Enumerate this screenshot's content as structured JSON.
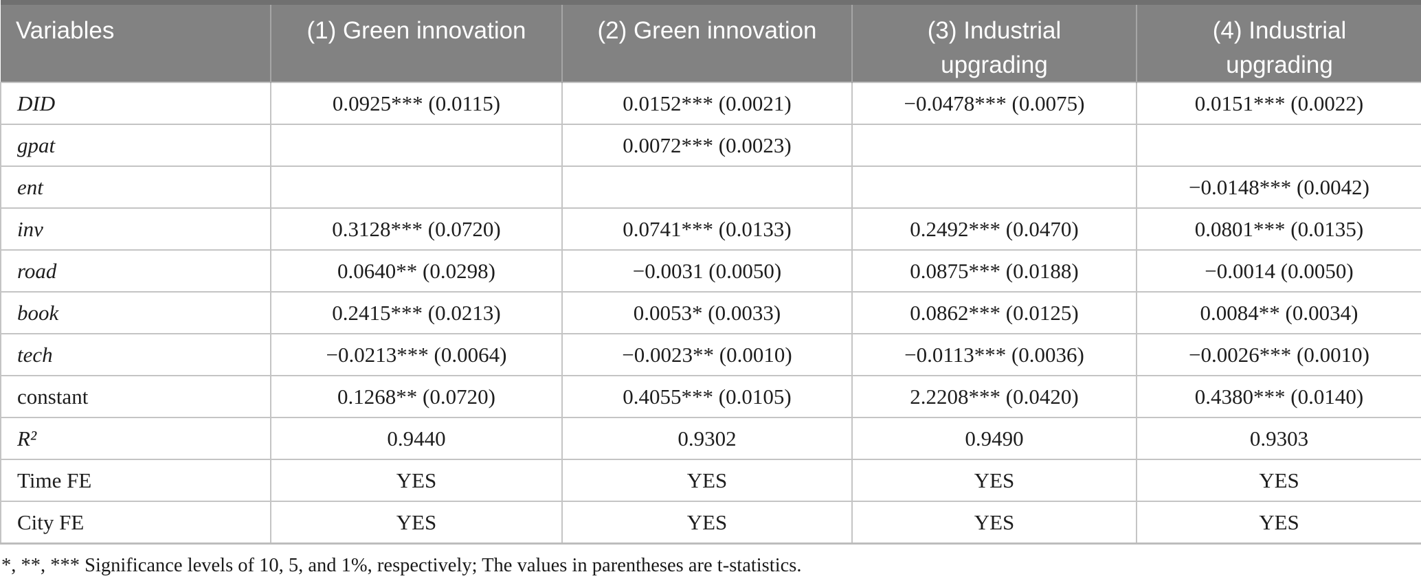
{
  "colors": {
    "header_bg": "#828282",
    "header_text": "#ffffff",
    "header_top_border": "#707070",
    "header_divider": "#a6a6a6",
    "cell_border": "#c4c4c4",
    "body_text": "#1d1d1d"
  },
  "table": {
    "columns": [
      {
        "label": "Variables"
      },
      {
        "label": "(1) Green innovation"
      },
      {
        "label": "(2) Green innovation"
      },
      {
        "label": "(3) Industrial upgrading"
      },
      {
        "label": "(4) Industrial upgrading"
      }
    ],
    "rows": [
      {
        "label": "DID",
        "italic": true,
        "values": [
          "0.0925*** (0.0115)",
          "0.0152*** (0.0021)",
          "−0.0478*** (0.0075)",
          "0.0151*** (0.0022)"
        ]
      },
      {
        "label": "gpat",
        "italic": true,
        "values": [
          "",
          "0.0072*** (0.0023)",
          "",
          ""
        ]
      },
      {
        "label": "ent",
        "italic": true,
        "values": [
          "",
          "",
          "",
          "−0.0148*** (0.0042)"
        ]
      },
      {
        "label": "inv",
        "italic": true,
        "values": [
          "0.3128*** (0.0720)",
          "0.0741*** (0.0133)",
          "0.2492*** (0.0470)",
          "0.0801*** (0.0135)"
        ]
      },
      {
        "label": "road",
        "italic": true,
        "values": [
          "0.0640** (0.0298)",
          "−0.0031 (0.0050)",
          "0.0875*** (0.0188)",
          "−0.0014 (0.0050)"
        ]
      },
      {
        "label": "book",
        "italic": true,
        "values": [
          "0.2415*** (0.0213)",
          "0.0053* (0.0033)",
          "0.0862*** (0.0125)",
          "0.0084** (0.0034)"
        ]
      },
      {
        "label": "tech",
        "italic": true,
        "values": [
          "−0.0213*** (0.0064)",
          "−0.0023** (0.0010)",
          "−0.0113*** (0.0036)",
          "−0.0026*** (0.0010)"
        ]
      },
      {
        "label": "constant",
        "italic": false,
        "values": [
          "0.1268** (0.0720)",
          "0.4055*** (0.0105)",
          "2.2208*** (0.0420)",
          "0.4380*** (0.0140)"
        ]
      },
      {
        "label": "R²",
        "italic": true,
        "values": [
          "0.9440",
          "0.9302",
          "0.9490",
          "0.9303"
        ]
      },
      {
        "label": "Time FE",
        "italic": false,
        "values": [
          "YES",
          "YES",
          "YES",
          "YES"
        ]
      },
      {
        "label": "City FE",
        "italic": false,
        "values": [
          "YES",
          "YES",
          "YES",
          "YES"
        ]
      }
    ],
    "footnote": "*, **, *** Significance levels of 10, 5, and 1%, respectively; The values in parentheses are t-statistics."
  }
}
